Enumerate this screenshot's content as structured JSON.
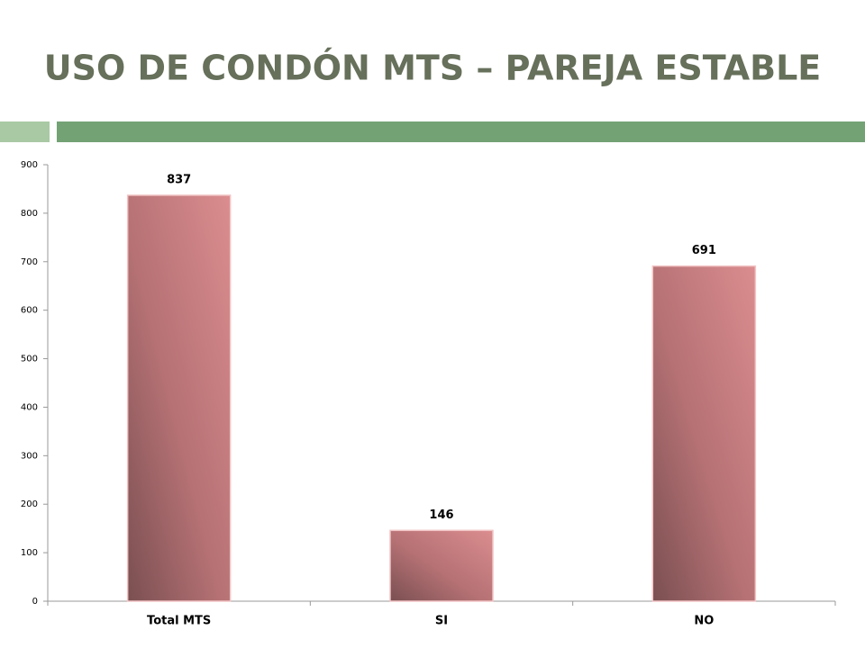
{
  "chart_data": {
    "type": "bar",
    "title": "USO DE CONDÓN MTS – PAREJA ESTABLE",
    "categories": [
      "Total MTS",
      "SI",
      "NO"
    ],
    "values": [
      837,
      146,
      691
    ],
    "color": "#c77b7e",
    "ylim": [
      0,
      900
    ],
    "yticks": [
      0,
      100,
      200,
      300,
      400,
      500,
      600,
      700,
      800,
      900
    ],
    "grid": false
  }
}
